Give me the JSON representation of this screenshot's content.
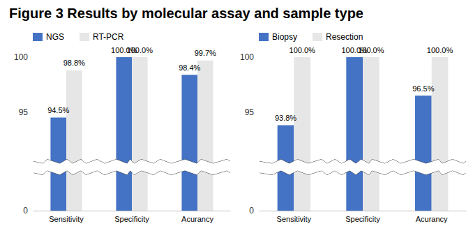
{
  "title": "Figure 3 Results by molecular assay and sample type",
  "chart_data": [
    {
      "type": "bar",
      "categories": [
        "Sensitivity",
        "Specificity",
        "Acurancy"
      ],
      "series": [
        {
          "name": "NGS",
          "color": "#4472c4",
          "values": [
            94.5,
            100.0,
            98.4
          ],
          "value_labels": [
            "94.5%",
            "100.0%",
            "98.4%"
          ]
        },
        {
          "name": "RT-PCR",
          "color": "#e7e6e6",
          "values": [
            98.8,
            100.0,
            99.7
          ],
          "value_labels": [
            "98.8%",
            "100.0%",
            "99.7%"
          ]
        }
      ],
      "ylim": [
        0,
        100
      ],
      "yticks": [
        0,
        95,
        100
      ],
      "grid": false,
      "legend": "top-left",
      "data_labels": true
    },
    {
      "type": "bar",
      "categories": [
        "Sensitivity",
        "Specificity",
        "Acurancy"
      ],
      "series": [
        {
          "name": "Biopsy",
          "color": "#4472c4",
          "values": [
            93.8,
            100.0,
            96.5
          ],
          "value_labels": [
            "93.8%",
            "100.0%",
            "96.5%"
          ]
        },
        {
          "name": "Resection",
          "color": "#e7e6e6",
          "values": [
            100.0,
            100.0,
            100.0
          ],
          "value_labels": [
            "100.0%",
            "100.0%",
            "100.0%"
          ]
        }
      ],
      "ylim": [
        0,
        100
      ],
      "yticks": [
        0,
        95,
        100
      ],
      "grid": false,
      "legend": "top-left",
      "data_labels": true
    }
  ]
}
